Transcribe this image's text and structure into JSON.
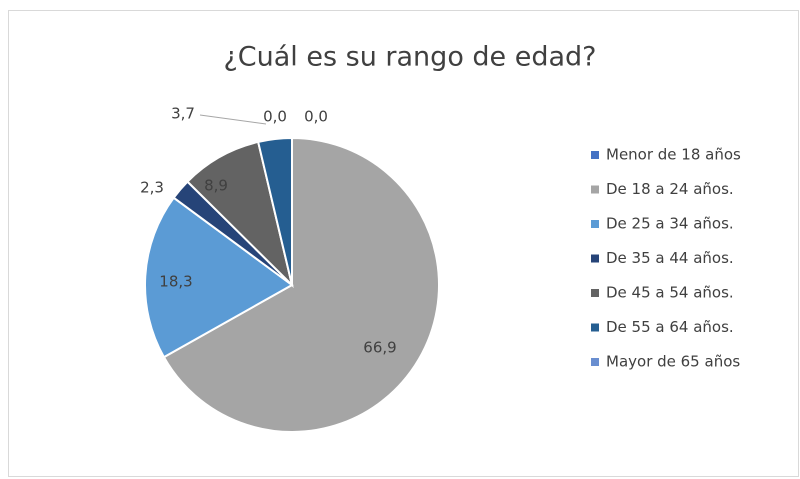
{
  "chart_data": {
    "type": "pie",
    "title": "¿Cuál es su rango de edad?",
    "categories": [
      "Menor de 18 años",
      "De 18 a 24 años.",
      "De 25 a 34 años.",
      "De 35 a 44 años.",
      "De 45 a 54 años.",
      "De 55 a 64 años.",
      "Mayor de 65 años"
    ],
    "values": [
      0.0,
      66.9,
      18.3,
      2.3,
      8.9,
      3.7,
      0.0
    ],
    "value_labels": [
      "0,0",
      "66,9",
      "18,3",
      "2,3",
      "8,9",
      "3,7",
      "0,0"
    ],
    "colors": [
      "#4472c4",
      "#a5a5a5",
      "#5b9bd5",
      "#264478",
      "#636363",
      "#255e91",
      "#698ed0"
    ],
    "legend": "right"
  }
}
